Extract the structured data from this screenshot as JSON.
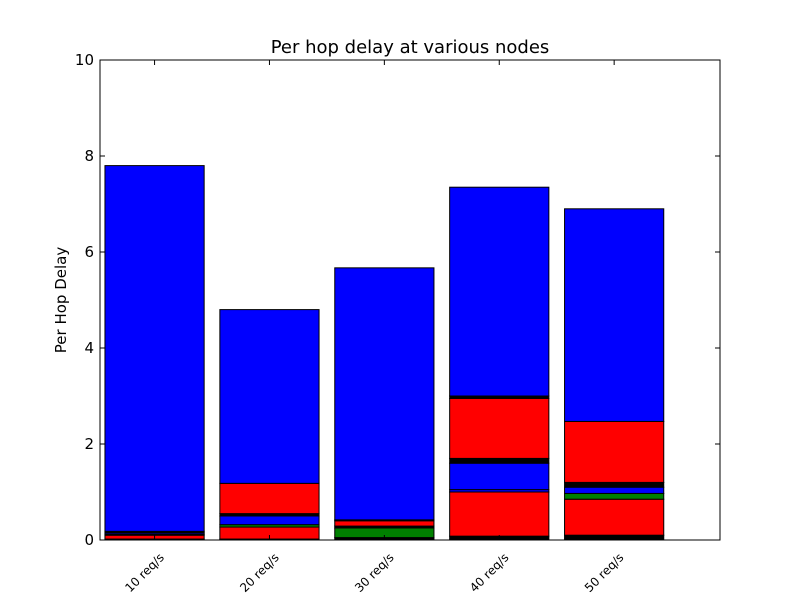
{
  "chart_data": {
    "type": "bar",
    "stacked": true,
    "title": "Per hop delay at various nodes",
    "xlabel": "",
    "ylabel": "Per Hop Delay",
    "ylim": [
      0,
      10
    ],
    "yticks": [
      "0",
      "2",
      "4",
      "6",
      "8",
      "10"
    ],
    "categories": [
      "10 req/s",
      "20 req/s",
      "30 req/s",
      "40 req/s",
      "50 req/s"
    ],
    "grid": false,
    "legend": "none",
    "segments": [
      [
        {
          "value": 0.02,
          "color": "#000000"
        },
        {
          "value": 0.08,
          "color": "#ff0000"
        },
        {
          "value": 0.02,
          "color": "#008000"
        },
        {
          "value": 0.03,
          "color": "#0000ff"
        },
        {
          "value": 0.03,
          "color": "#000000"
        },
        {
          "value": 7.62,
          "color": "#0000ff"
        }
      ],
      [
        {
          "value": 0.02,
          "color": "#000000"
        },
        {
          "value": 0.25,
          "color": "#ff0000"
        },
        {
          "value": 0.05,
          "color": "#008000"
        },
        {
          "value": 0.18,
          "color": "#0000ff"
        },
        {
          "value": 0.05,
          "color": "#000000"
        },
        {
          "value": 0.63,
          "color": "#ff0000"
        },
        {
          "value": 3.62,
          "color": "#0000ff"
        }
      ],
      [
        {
          "value": 0.05,
          "color": "#000000"
        },
        {
          "value": 0.2,
          "color": "#008000"
        },
        {
          "value": 0.04,
          "color": "#000000"
        },
        {
          "value": 0.11,
          "color": "#ff0000"
        },
        {
          "value": 0.02,
          "color": "#000000"
        },
        {
          "value": 5.25,
          "color": "#0000ff"
        }
      ],
      [
        {
          "value": 0.08,
          "color": "#000000"
        },
        {
          "value": 0.92,
          "color": "#ff0000"
        },
        {
          "value": 0.05,
          "color": "#0000ff"
        },
        {
          "value": 0.55,
          "color": "#0000ff"
        },
        {
          "value": 0.1,
          "color": "#000000"
        },
        {
          "value": 1.25,
          "color": "#ff0000"
        },
        {
          "value": 0.05,
          "color": "#000000"
        },
        {
          "value": 4.35,
          "color": "#0000ff"
        }
      ],
      [
        {
          "value": 0.1,
          "color": "#000000"
        },
        {
          "value": 0.75,
          "color": "#ff0000"
        },
        {
          "value": 0.12,
          "color": "#008000"
        },
        {
          "value": 0.13,
          "color": "#0000ff"
        },
        {
          "value": 0.1,
          "color": "#000000"
        },
        {
          "value": 1.27,
          "color": "#ff0000"
        },
        {
          "value": 4.43,
          "color": "#0000ff"
        }
      ]
    ]
  }
}
